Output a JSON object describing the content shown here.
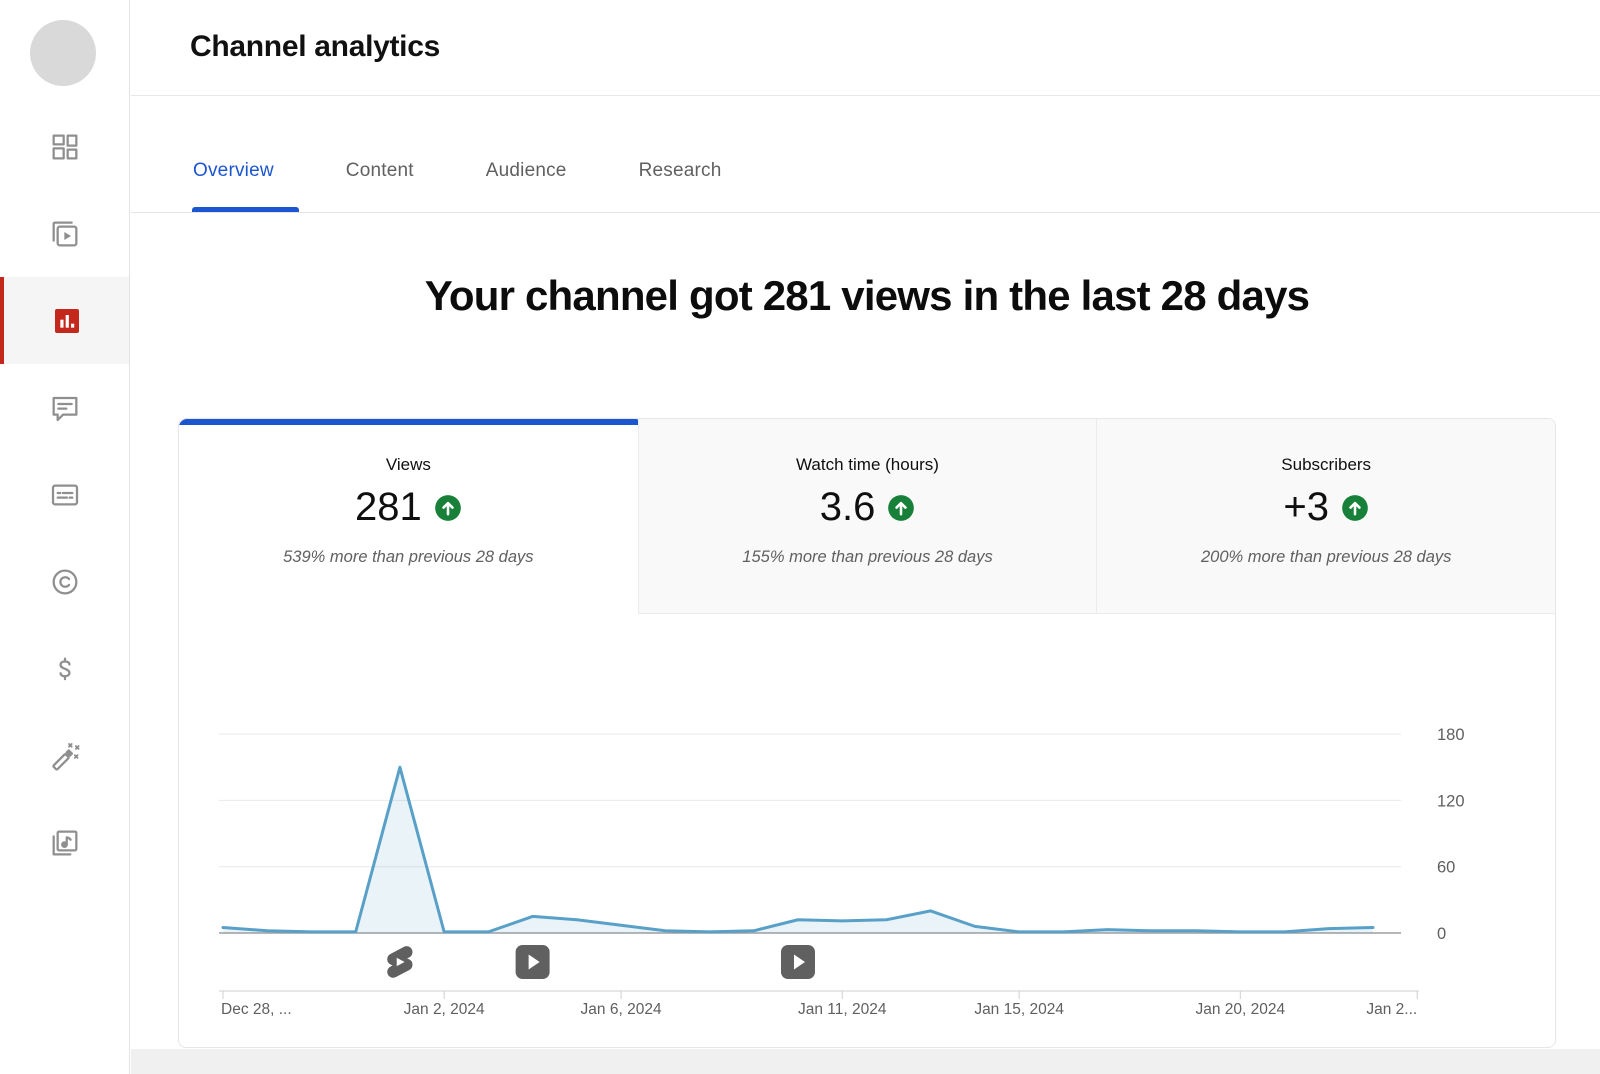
{
  "page": {
    "title": "Channel analytics"
  },
  "colors": {
    "accent_blue": "#1b55d0",
    "analytics_red": "#c4281c",
    "trend_green": "#188038",
    "chart_line": "#58a0c8",
    "chart_fill": "rgba(88,160,200,0.13)"
  },
  "sidebar": {
    "items": [
      {
        "icon": "dashboard-icon",
        "active": false
      },
      {
        "icon": "content-icon",
        "active": false
      },
      {
        "icon": "analytics-icon",
        "active": true
      },
      {
        "icon": "comments-icon",
        "active": false
      },
      {
        "icon": "subtitles-icon",
        "active": false
      },
      {
        "icon": "copyright-icon",
        "active": false
      },
      {
        "icon": "earn-icon",
        "active": false
      },
      {
        "icon": "customization-icon",
        "active": false
      },
      {
        "icon": "audio-library-icon",
        "active": false
      }
    ]
  },
  "tabs": [
    {
      "label": "Overview",
      "active": true
    },
    {
      "label": "Content",
      "active": false
    },
    {
      "label": "Audience",
      "active": false
    },
    {
      "label": "Research",
      "active": false
    }
  ],
  "headline": "Your channel got 281 views in the last 28 days",
  "metrics": [
    {
      "label": "Views",
      "value": "281",
      "trend": "up",
      "delta": "539% more than previous 28 days",
      "active": true
    },
    {
      "label": "Watch time (hours)",
      "value": "3.6",
      "trend": "up",
      "delta": "155% more than previous 28 days",
      "active": false
    },
    {
      "label": "Subscribers",
      "value": "+3",
      "trend": "up",
      "delta": "200% more than previous 28 days",
      "active": false
    }
  ],
  "chart_data": {
    "type": "area",
    "title": "Views per day (last 28 days)",
    "x": [
      "Dec 28, 2023",
      "Dec 29, 2023",
      "Dec 30, 2023",
      "Dec 31, 2023",
      "Jan 1, 2024",
      "Jan 2, 2024",
      "Jan 3, 2024",
      "Jan 4, 2024",
      "Jan 5, 2024",
      "Jan 6, 2024",
      "Jan 7, 2024",
      "Jan 8, 2024",
      "Jan 9, 2024",
      "Jan 10, 2024",
      "Jan 11, 2024",
      "Jan 12, 2024",
      "Jan 13, 2024",
      "Jan 14, 2024",
      "Jan 15, 2024",
      "Jan 16, 2024",
      "Jan 17, 2024",
      "Jan 18, 2024",
      "Jan 19, 2024",
      "Jan 20, 2024",
      "Jan 21, 2024",
      "Jan 22, 2024",
      "Jan 23, 2024"
    ],
    "values": [
      5,
      2,
      1,
      1,
      150,
      1,
      1,
      15,
      12,
      7,
      2,
      1,
      2,
      12,
      11,
      12,
      20,
      6,
      1,
      1,
      3,
      2,
      2,
      1,
      1,
      4,
      5
    ],
    "total": 281,
    "x_domain_days": 28,
    "ylim": [
      0,
      180
    ],
    "yticks": [
      0,
      60,
      120,
      180
    ],
    "grid": true,
    "y_axis_side": "right",
    "xtick_labels": [
      {
        "index": 0,
        "label": "Dec 28, ..."
      },
      {
        "index": 5,
        "label": "Jan 2, 2024"
      },
      {
        "index": 9,
        "label": "Jan 6, 2024"
      },
      {
        "index": 14,
        "label": "Jan 11, 2024"
      },
      {
        "index": 18,
        "label": "Jan 15, 2024"
      },
      {
        "index": 23,
        "label": "Jan 20, 2024"
      },
      {
        "index": 27,
        "label": "Jan 2..."
      }
    ],
    "markers": [
      {
        "type": "shorts",
        "index": 4
      },
      {
        "type": "video",
        "index": 7
      },
      {
        "type": "video",
        "index": 13
      }
    ]
  }
}
